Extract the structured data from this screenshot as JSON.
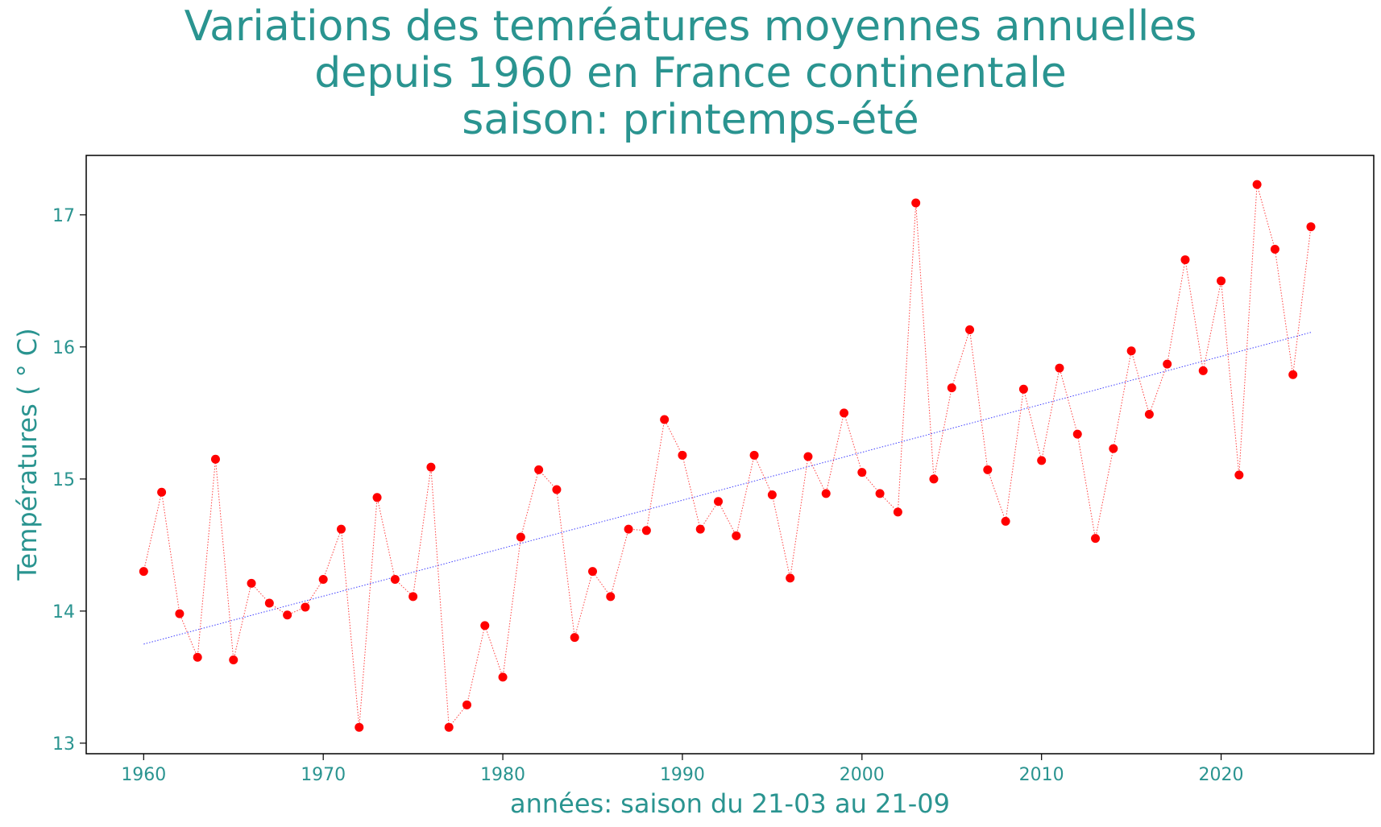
{
  "colors": {
    "text": "#2a9490",
    "points": "#ff0000",
    "connector": "#ff0000",
    "trend": "#0000ff",
    "frame": "#000000"
  },
  "chart_data": {
    "type": "scatter",
    "title_lines": [
      "Variations des temréatures moyennes annuelles",
      "depuis 1960 en France continentale",
      "saison: printemps-été"
    ],
    "xlabel": "années: saison du 21-03 au 21-09",
    "ylabel": "Températures ( ° C)",
    "xlim": [
      1956.8,
      2028.5
    ],
    "ylim": [
      12.92,
      17.45
    ],
    "xticks": [
      1960,
      1970,
      1980,
      1990,
      2000,
      2010,
      2020
    ],
    "yticks": [
      13,
      14,
      15,
      16,
      17
    ],
    "grid": false,
    "legend": "none",
    "series": [
      {
        "style": "red dots joined by dotted line",
        "x": [
          1960,
          1961,
          1962,
          1963,
          1964,
          1965,
          1966,
          1967,
          1968,
          1969,
          1970,
          1971,
          1972,
          1973,
          1974,
          1975,
          1976,
          1977,
          1978,
          1979,
          1980,
          1981,
          1982,
          1983,
          1984,
          1985,
          1986,
          1987,
          1988,
          1989,
          1990,
          1991,
          1992,
          1993,
          1994,
          1995,
          1996,
          1997,
          1998,
          1999,
          2000,
          2001,
          2002,
          2003,
          2004,
          2005,
          2006,
          2007,
          2008,
          2009,
          2010,
          2011,
          2012,
          2013,
          2014,
          2015,
          2016,
          2017,
          2018,
          2019,
          2020,
          2021,
          2022,
          2023,
          2024,
          2025
        ],
        "y": [
          14.3,
          14.9,
          13.98,
          13.65,
          15.15,
          13.63,
          14.21,
          14.06,
          13.97,
          14.03,
          14.24,
          14.62,
          13.12,
          14.86,
          14.24,
          14.11,
          15.09,
          13.12,
          13.29,
          13.89,
          13.5,
          14.56,
          15.07,
          14.92,
          13.8,
          14.3,
          14.11,
          14.62,
          14.61,
          15.45,
          15.18,
          14.62,
          14.83,
          14.57,
          15.18,
          14.88,
          14.25,
          15.17,
          14.89,
          15.5,
          15.05,
          14.89,
          14.75,
          17.09,
          15.0,
          15.69,
          16.13,
          15.07,
          14.68,
          15.68,
          15.14,
          15.84,
          15.34,
          14.55,
          15.23,
          15.97,
          15.49,
          15.87,
          16.66,
          15.82,
          16.5,
          15.03,
          17.23,
          16.74,
          15.79,
          16.91
        ]
      }
    ],
    "trend": {
      "style": "blue dotted linear fit",
      "x": [
        1960,
        2025
      ],
      "y": [
        13.75,
        16.11
      ]
    }
  }
}
